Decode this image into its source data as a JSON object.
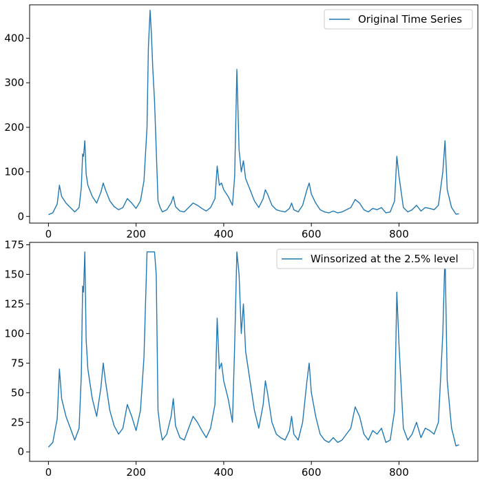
{
  "chart_data": [
    {
      "type": "line",
      "series": [
        {
          "name": "Original Time Series",
          "color": "#1f77b4",
          "x": [
            0,
            10,
            20,
            25,
            30,
            40,
            50,
            60,
            70,
            75,
            78,
            80,
            83,
            86,
            90,
            100,
            110,
            120,
            125,
            130,
            140,
            150,
            160,
            170,
            180,
            190,
            200,
            210,
            218,
            225,
            228,
            232,
            235,
            238,
            242,
            246,
            250,
            255,
            260,
            270,
            280,
            285,
            290,
            300,
            310,
            320,
            330,
            340,
            350,
            360,
            370,
            380,
            385,
            390,
            395,
            400,
            410,
            420,
            425,
            430,
            435,
            440,
            445,
            450,
            460,
            470,
            480,
            490,
            495,
            500,
            510,
            520,
            530,
            540,
            550,
            555,
            560,
            570,
            580,
            590,
            595,
            600,
            610,
            620,
            630,
            640,
            650,
            660,
            670,
            680,
            690,
            700,
            710,
            720,
            730,
            740,
            750,
            760,
            770,
            780,
            790,
            795,
            800,
            810,
            820,
            830,
            840,
            850,
            860,
            870,
            880,
            890,
            900,
            905,
            910,
            920,
            930,
            937
          ],
          "y": [
            4,
            8,
            28,
            70,
            45,
            30,
            20,
            10,
            20,
            65,
            140,
            135,
            170,
            95,
            70,
            45,
            30,
            55,
            75,
            60,
            35,
            22,
            15,
            20,
            40,
            30,
            18,
            35,
            80,
            200,
            380,
            463,
            410,
            335,
            260,
            150,
            35,
            20,
            10,
            15,
            30,
            45,
            22,
            12,
            10,
            20,
            30,
            25,
            18,
            12,
            20,
            40,
            113,
            70,
            75,
            60,
            45,
            25,
            90,
            330,
            150,
            100,
            125,
            85,
            60,
            35,
            20,
            40,
            60,
            50,
            25,
            15,
            12,
            10,
            18,
            30,
            15,
            10,
            25,
            60,
            75,
            50,
            30,
            15,
            10,
            8,
            12,
            8,
            10,
            15,
            20,
            38,
            30,
            15,
            10,
            18,
            15,
            20,
            8,
            10,
            35,
            135,
            90,
            20,
            10,
            15,
            25,
            12,
            20,
            18,
            15,
            25,
            100,
            170,
            60,
            20,
            5,
            6
          ],
          "ylim": [
            -15,
            475
          ],
          "xlim": [
            -43,
            980
          ]
        }
      ],
      "x_ticks": [
        "0",
        "200",
        "400",
        "600",
        "800"
      ],
      "y_ticks": [
        "0",
        "100",
        "200",
        "300",
        "400"
      ],
      "legend_position": "top-right",
      "grid": false
    },
    {
      "type": "line",
      "series": [
        {
          "name": "Winsorized at the 2.5% level",
          "color": "#1f77b4",
          "x": [
            0,
            10,
            20,
            25,
            30,
            40,
            50,
            60,
            70,
            75,
            78,
            80,
            83,
            86,
            90,
            100,
            110,
            120,
            125,
            130,
            140,
            150,
            160,
            170,
            180,
            190,
            200,
            210,
            218,
            225,
            228,
            232,
            235,
            238,
            242,
            246,
            250,
            255,
            260,
            270,
            280,
            285,
            290,
            300,
            310,
            320,
            330,
            340,
            350,
            360,
            370,
            380,
            385,
            390,
            395,
            400,
            410,
            420,
            425,
            430,
            435,
            440,
            445,
            450,
            460,
            470,
            480,
            490,
            495,
            500,
            510,
            520,
            530,
            540,
            550,
            555,
            560,
            570,
            580,
            590,
            595,
            600,
            610,
            620,
            630,
            640,
            650,
            660,
            670,
            680,
            690,
            700,
            710,
            720,
            730,
            740,
            750,
            760,
            770,
            780,
            790,
            795,
            800,
            810,
            820,
            830,
            840,
            850,
            860,
            870,
            880,
            890,
            900,
            905,
            910,
            920,
            930,
            937
          ],
          "y": [
            4,
            8,
            28,
            70,
            45,
            30,
            20,
            10,
            20,
            65,
            140,
            135,
            169,
            95,
            70,
            45,
            30,
            55,
            75,
            60,
            35,
            22,
            15,
            20,
            40,
            30,
            18,
            35,
            80,
            169,
            169,
            169,
            169,
            169,
            169,
            150,
            35,
            20,
            10,
            15,
            30,
            45,
            22,
            12,
            10,
            20,
            30,
            25,
            18,
            12,
            20,
            40,
            113,
            70,
            75,
            60,
            45,
            25,
            90,
            169,
            150,
            100,
            125,
            85,
            60,
            35,
            20,
            40,
            60,
            50,
            25,
            15,
            12,
            10,
            18,
            30,
            15,
            10,
            25,
            60,
            75,
            50,
            30,
            15,
            10,
            8,
            12,
            8,
            10,
            15,
            20,
            38,
            30,
            15,
            10,
            18,
            15,
            20,
            8,
            10,
            35,
            135,
            90,
            20,
            10,
            15,
            25,
            12,
            20,
            18,
            15,
            25,
            100,
            169,
            60,
            20,
            5,
            6
          ],
          "ylim": [
            -8,
            177
          ],
          "xlim": [
            -43,
            980
          ]
        }
      ],
      "x_ticks": [
        "0",
        "200",
        "400",
        "600",
        "800"
      ],
      "y_ticks": [
        "0",
        "25",
        "50",
        "75",
        "100",
        "125",
        "150",
        "175"
      ],
      "legend_position": "top-right",
      "grid": false
    }
  ]
}
